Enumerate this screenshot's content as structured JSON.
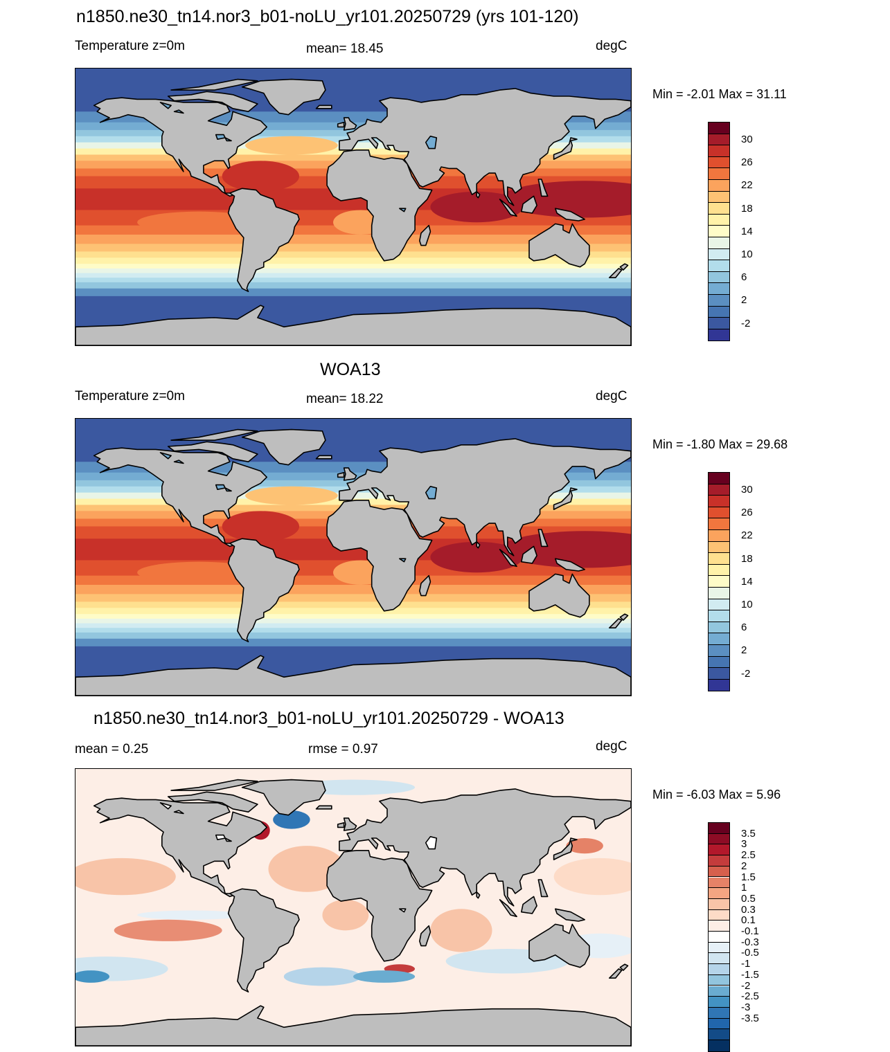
{
  "panels": [
    {
      "title": "n1850.ne30_tn14.nor3_b01-noLU_yr101.20250729 (yrs 101-120)",
      "left_label": "Temperature z=0m",
      "center_label": "mean=  18.45",
      "right_label": "degC",
      "minmax": "Min =  -2.01 Max =  31.11",
      "colorbar": {
        "colors": [
          "#67001f",
          "#a51c2a",
          "#c83129",
          "#e0502e",
          "#f1763e",
          "#fba35d",
          "#fdc274",
          "#fee08f",
          "#fff2a9",
          "#fefcc8",
          "#e9f5e7",
          "#d1ebf1",
          "#b2ddeb",
          "#92c6de",
          "#74acd2",
          "#5b8fc1",
          "#4675b2",
          "#3b58a0",
          "#313695"
        ],
        "labels": [
          "30",
          "26",
          "22",
          "18",
          "14",
          "10",
          "6",
          "2",
          "-2"
        ]
      },
      "map_kind": "sst"
    },
    {
      "title": "WOA13",
      "left_label": "Temperature z=0m",
      "center_label": "mean=  18.22",
      "right_label": "degC",
      "minmax": "Min =  -1.80 Max =  29.68",
      "colorbar": {
        "colors": [
          "#67001f",
          "#a51c2a",
          "#c83129",
          "#e0502e",
          "#f1763e",
          "#fba35d",
          "#fdc274",
          "#fee08f",
          "#fff2a9",
          "#fefcc8",
          "#e9f5e7",
          "#d1ebf1",
          "#b2ddeb",
          "#92c6de",
          "#74acd2",
          "#5b8fc1",
          "#4675b2",
          "#3b58a0",
          "#313695"
        ],
        "labels": [
          "30",
          "26",
          "22",
          "18",
          "14",
          "10",
          "6",
          "2",
          "-2"
        ]
      },
      "map_kind": "sst"
    },
    {
      "title": "n1850.ne30_tn14.nor3_b01-noLU_yr101.20250729 - WOA13",
      "left_label": "mean =   0.25",
      "center_label": "rmse =   0.97",
      "right_label": "degC",
      "minmax": "Min =  -6.03 Max =   5.96",
      "colorbar": {
        "colors": [
          "#67001f",
          "#8d0c25",
          "#b2182b",
          "#c43c3c",
          "#d6604d",
          "#e58267",
          "#f4a582",
          "#f8c4a8",
          "#fddbc7",
          "#fdeee6",
          "#ffffff",
          "#e6f0f7",
          "#d1e5f0",
          "#b5d4e9",
          "#92c5de",
          "#6aacd0",
          "#4393c3",
          "#3076b5",
          "#2166ac",
          "#134b87",
          "#053061"
        ],
        "labels": [
          "3.5",
          "3",
          "2.5",
          "2",
          "1.5",
          "1",
          "0.5",
          "0.3",
          "0.1",
          "-0.1",
          "-0.3",
          "-0.5",
          "-1",
          "-1.5",
          "-2",
          "-2.5",
          "-3",
          "-3.5"
        ]
      },
      "map_kind": "diff"
    }
  ]
}
